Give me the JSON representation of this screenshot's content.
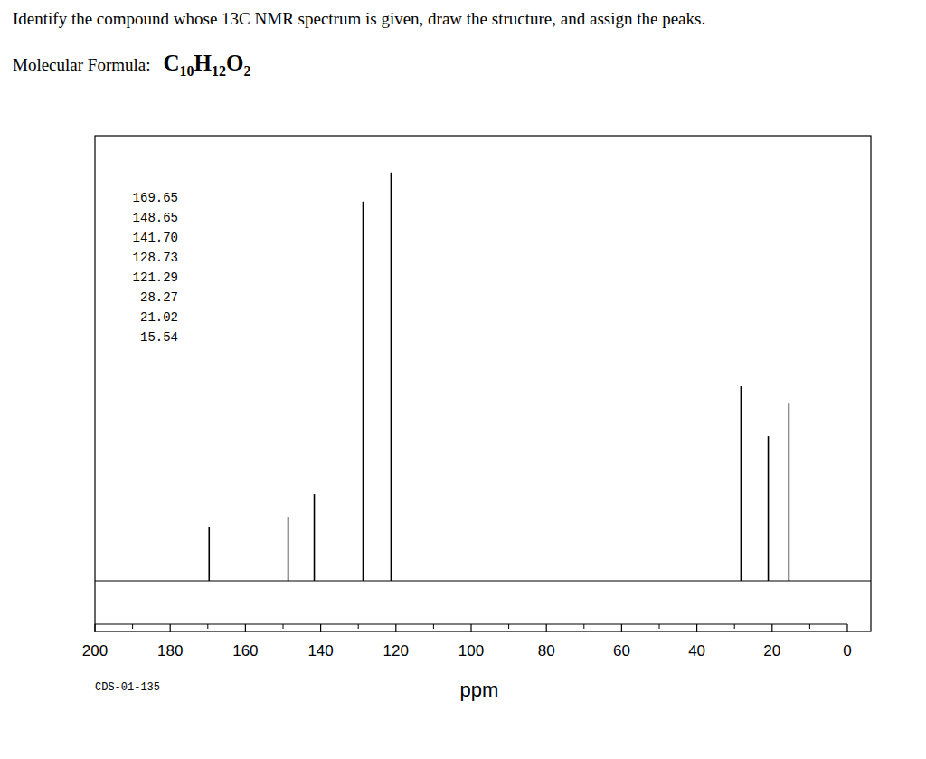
{
  "header": {
    "question": "Identify the compound whose 13C NMR spectrum is given, draw the structure, and assign the peaks.",
    "formula_label": "Molecular Formula:",
    "formula": "C10H12O2"
  },
  "chart_data": {
    "type": "stick",
    "x_label": "ppm",
    "annotation": "CDS-01-135",
    "peak_list": [
      "169.65",
      "148.65",
      "141.70",
      "128.73",
      "121.29",
      "28.27",
      "21.02",
      "15.54"
    ],
    "x": [
      169.65,
      148.65,
      141.7,
      128.73,
      121.29,
      28.27,
      21.02,
      15.54
    ],
    "values": [
      12.2,
      14.4,
      19.5,
      85.2,
      91.7,
      43.7,
      32.5,
      39.8
    ],
    "xlim": [
      200,
      0
    ],
    "ylim": [
      0,
      100
    ],
    "xticks": [
      200,
      180,
      160,
      140,
      120,
      100,
      80,
      60,
      40,
      20,
      0
    ],
    "tick_labels": "x",
    "color": "#000000"
  }
}
